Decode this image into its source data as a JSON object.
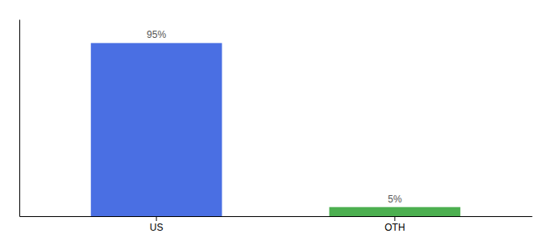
{
  "chart_data": {
    "type": "bar",
    "categories": [
      "US",
      "OTH"
    ],
    "values": [
      95,
      5
    ],
    "value_labels": [
      "95%",
      "5%"
    ],
    "colors": [
      "#4A6FE3",
      "#4CAF50"
    ],
    "ylim": [
      0,
      108
    ],
    "data_labels": true,
    "tick_labels": "x",
    "grid": false
  }
}
